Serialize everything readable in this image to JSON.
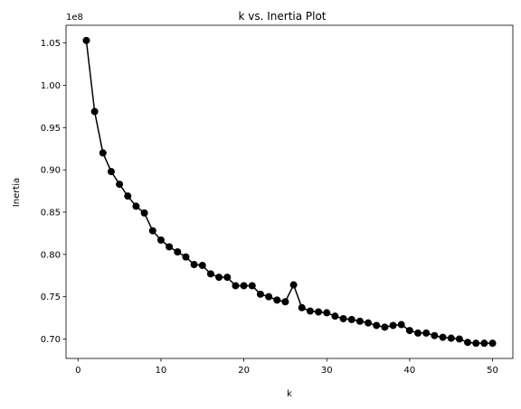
{
  "chart_data": {
    "type": "line",
    "title": "k vs. Inertia Plot",
    "xlabel": "k",
    "ylabel": "Inertia",
    "y_offset_label": "1e8",
    "x_ticks": [
      0,
      10,
      20,
      30,
      40,
      50
    ],
    "x_tick_labels": [
      "0",
      "10",
      "20",
      "30",
      "40",
      "50"
    ],
    "y_ticks": [
      0.7,
      0.75,
      0.8,
      0.85,
      0.9,
      0.95,
      1.0,
      1.05
    ],
    "y_tick_labels": [
      "0.70",
      "0.75",
      "0.80",
      "0.85",
      "0.90",
      "0.95",
      "1.00",
      "1.05"
    ],
    "xlim": [
      -1.45,
      52.45
    ],
    "ylim": [
      0.677,
      1.071
    ],
    "grid": false,
    "marker": "circle",
    "color": "#000000",
    "x": [
      1,
      2,
      3,
      4,
      5,
      6,
      7,
      8,
      9,
      10,
      11,
      12,
      13,
      14,
      15,
      16,
      17,
      18,
      19,
      20,
      21,
      22,
      23,
      24,
      25,
      26,
      27,
      28,
      29,
      30,
      31,
      32,
      33,
      34,
      35,
      36,
      37,
      38,
      39,
      40,
      41,
      42,
      43,
      44,
      45,
      46,
      47,
      48,
      49,
      50
    ],
    "y": [
      1.053,
      0.969,
      0.92,
      0.898,
      0.883,
      0.869,
      0.857,
      0.849,
      0.828,
      0.817,
      0.809,
      0.803,
      0.797,
      0.788,
      0.787,
      0.777,
      0.773,
      0.773,
      0.763,
      0.763,
      0.763,
      0.753,
      0.75,
      0.746,
      0.744,
      0.764,
      0.737,
      0.733,
      0.732,
      0.731,
      0.727,
      0.724,
      0.723,
      0.721,
      0.719,
      0.716,
      0.714,
      0.716,
      0.717,
      0.71,
      0.707,
      0.707,
      0.704,
      0.702,
      0.701,
      0.7,
      0.696,
      0.695,
      0.695,
      0.695
    ]
  }
}
